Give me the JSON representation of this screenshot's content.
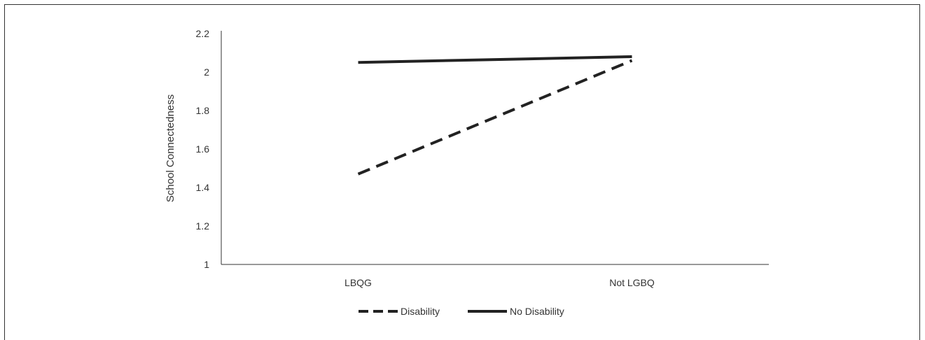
{
  "chart_data": {
    "type": "line",
    "title": "",
    "xlabel": "",
    "ylabel": "School Connectedness",
    "categories": [
      "LBQG",
      "Not LGBQ"
    ],
    "ylim": [
      1,
      2.2
    ],
    "yticks": [
      "1",
      "1.2",
      "1.4",
      "1.6",
      "1.8",
      "2",
      "2.2"
    ],
    "yticks_values": [
      1,
      1.2,
      1.4,
      1.6,
      1.8,
      2,
      2.2
    ],
    "grid": false,
    "legend_position": "bottom",
    "series": [
      {
        "name": "Disability",
        "style": "dashed",
        "color": "#222222",
        "values": [
          1.47,
          2.06
        ]
      },
      {
        "name": "No Disability",
        "style": "solid",
        "color": "#222222",
        "values": [
          2.05,
          2.08
        ]
      }
    ]
  }
}
